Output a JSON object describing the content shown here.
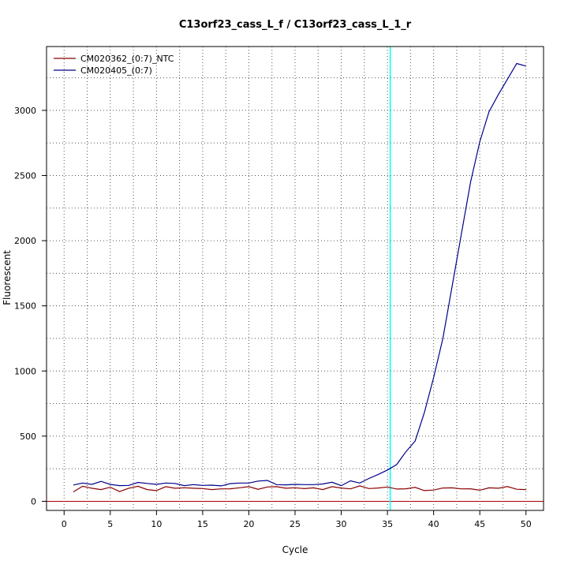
{
  "chart_data": {
    "type": "line",
    "title": "C13orf23_cass_L_f / C13orf23_cass_L_1_r",
    "xlabel": "Cycle",
    "ylabel": "Fluorescent",
    "xlim": [
      -1.9,
      51.9
    ],
    "ylim": [
      -70,
      3490
    ],
    "x_ticks": [
      0,
      5,
      10,
      15,
      20,
      25,
      30,
      35,
      40,
      45,
      50
    ],
    "y_ticks": [
      0,
      500,
      1000,
      1500,
      2000,
      2500,
      3000
    ],
    "grid": true,
    "legend_position": "top-left",
    "threshold_cycle": 35.3,
    "baseline_y": 0,
    "threshold_color": "#00ffff",
    "baseline_color": "#aa0000",
    "x": [
      1,
      2,
      3,
      4,
      5,
      6,
      7,
      8,
      9,
      10,
      11,
      12,
      13,
      14,
      15,
      16,
      17,
      18,
      19,
      20,
      21,
      22,
      23,
      24,
      25,
      26,
      27,
      28,
      29,
      30,
      31,
      32,
      33,
      34,
      35,
      36,
      37,
      38,
      39,
      40,
      41,
      42,
      43,
      44,
      45,
      46,
      47,
      48,
      49,
      50
    ],
    "series": [
      {
        "name": "CM020362_(0:7)_NTC",
        "color": "#8b0000",
        "values": [
          72,
          115,
          100,
          90,
          108,
          75,
          100,
          115,
          90,
          82,
          112,
          100,
          104,
          100,
          98,
          90,
          95,
          96,
          104,
          112,
          92,
          110,
          112,
          100,
          104,
          97,
          103,
          90,
          112,
          102,
          95,
          118,
          98,
          102,
          110,
          94,
          96,
          107,
          82,
          86,
          102,
          103,
          95,
          96,
          85,
          103,
          100,
          113,
          92,
          90
        ]
      },
      {
        "name": "CM020405_(0:7)",
        "color": "#00008b",
        "values": [
          125,
          140,
          130,
          153,
          130,
          120,
          122,
          145,
          137,
          130,
          140,
          137,
          120,
          128,
          122,
          124,
          118,
          136,
          140,
          140,
          155,
          160,
          128,
          126,
          130,
          128,
          128,
          133,
          146,
          120,
          157,
          140,
          175,
          206,
          240,
          282,
          380,
          462,
          680,
          950,
          1250,
          1650,
          2050,
          2450,
          2760,
          2990,
          3120,
          3240,
          3360,
          3340
        ]
      }
    ]
  }
}
